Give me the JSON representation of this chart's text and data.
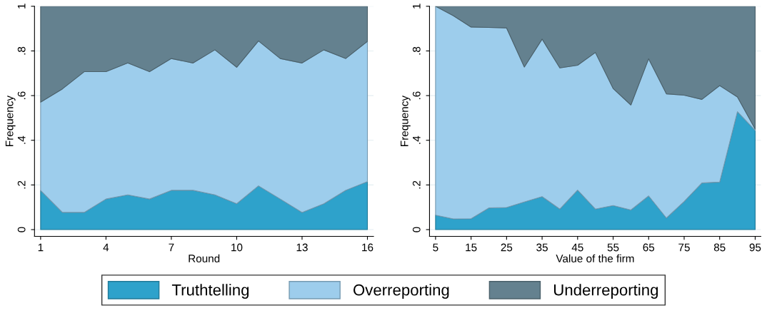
{
  "chart_data": [
    {
      "type": "area",
      "stacked": true,
      "xlabel": "Round",
      "ylabel": "Frequency",
      "x": [
        1,
        2,
        3,
        4,
        5,
        6,
        7,
        8,
        9,
        10,
        11,
        12,
        13,
        14,
        15,
        16
      ],
      "xlim": [
        0.72,
        16.28
      ],
      "xticks": [
        1,
        4,
        7,
        10,
        13,
        16
      ],
      "ylim": [
        -0.03,
        1.0
      ],
      "yticks": [
        {
          "value": 0,
          "label": "0"
        },
        {
          "value": 0.2,
          "label": ".2"
        },
        {
          "value": 0.4,
          "label": ".4"
        },
        {
          "value": 0.6,
          "label": ".6"
        },
        {
          "value": 0.8,
          "label": ".8"
        },
        {
          "value": 1,
          "label": "1"
        }
      ],
      "grid": "y",
      "legend": "bottom",
      "series": [
        {
          "name": "Truthtelling",
          "color": "#2ea2cb",
          "values": [
            0.175,
            0.077,
            0.077,
            0.137,
            0.156,
            0.137,
            0.176,
            0.176,
            0.156,
            0.116,
            0.196,
            0.137,
            0.077,
            0.116,
            0.176,
            0.215
          ]
        },
        {
          "name": "Overreporting",
          "color": "#9dcdec",
          "values": [
            0.396,
            0.553,
            0.63,
            0.57,
            0.59,
            0.57,
            0.59,
            0.57,
            0.649,
            0.611,
            0.649,
            0.629,
            0.669,
            0.689,
            0.59,
            0.628
          ]
        },
        {
          "name": "Underreporting",
          "color": "#64818f",
          "values": [
            0.429,
            0.37,
            0.293,
            0.293,
            0.254,
            0.293,
            0.234,
            0.254,
            0.195,
            0.273,
            0.155,
            0.234,
            0.254,
            0.195,
            0.234,
            0.157
          ]
        }
      ]
    },
    {
      "type": "area",
      "stacked": true,
      "xlabel": "Value of the firm",
      "ylabel": "Frequency",
      "x": [
        5,
        10,
        15,
        20,
        25,
        30,
        35,
        40,
        45,
        50,
        55,
        60,
        65,
        70,
        75,
        80,
        85,
        90,
        95
      ],
      "xlim": [
        3.3,
        96.6
      ],
      "xticks": [
        5,
        15,
        25,
        35,
        45,
        55,
        65,
        75,
        85,
        95
      ],
      "ylim": [
        -0.03,
        1.0
      ],
      "yticks": [
        {
          "value": 0,
          "label": "0"
        },
        {
          "value": 0.2,
          "label": ".2"
        },
        {
          "value": 0.4,
          "label": ".4"
        },
        {
          "value": 0.6,
          "label": ".6"
        },
        {
          "value": 0.8,
          "label": ".8"
        },
        {
          "value": 1,
          "label": "1"
        }
      ],
      "grid": "y",
      "series": [
        {
          "color": "#2ea2cb",
          "values": [
            0.065,
            0.048,
            0.049,
            0.097,
            0.099,
            0.124,
            0.148,
            0.092,
            0.177,
            0.092,
            0.108,
            0.088,
            0.151,
            0.052,
            0.126,
            0.209,
            0.213,
            0.528,
            0.444
          ]
        },
        {
          "color": "#9dcdec",
          "values": [
            0.935,
            0.91,
            0.858,
            0.808,
            0.804,
            0.604,
            0.705,
            0.632,
            0.559,
            0.701,
            0.524,
            0.47,
            0.614,
            0.556,
            0.476,
            0.374,
            0.432,
            0.066,
            0.006
          ]
        },
        {
          "color": "#64818f",
          "values": [
            0,
            0.042,
            0.093,
            0.095,
            0.097,
            0.272,
            0.147,
            0.276,
            0.264,
            0.207,
            0.368,
            0.442,
            0.235,
            0.392,
            0.398,
            0.417,
            0.355,
            0.406,
            0.55
          ]
        }
      ]
    }
  ]
}
